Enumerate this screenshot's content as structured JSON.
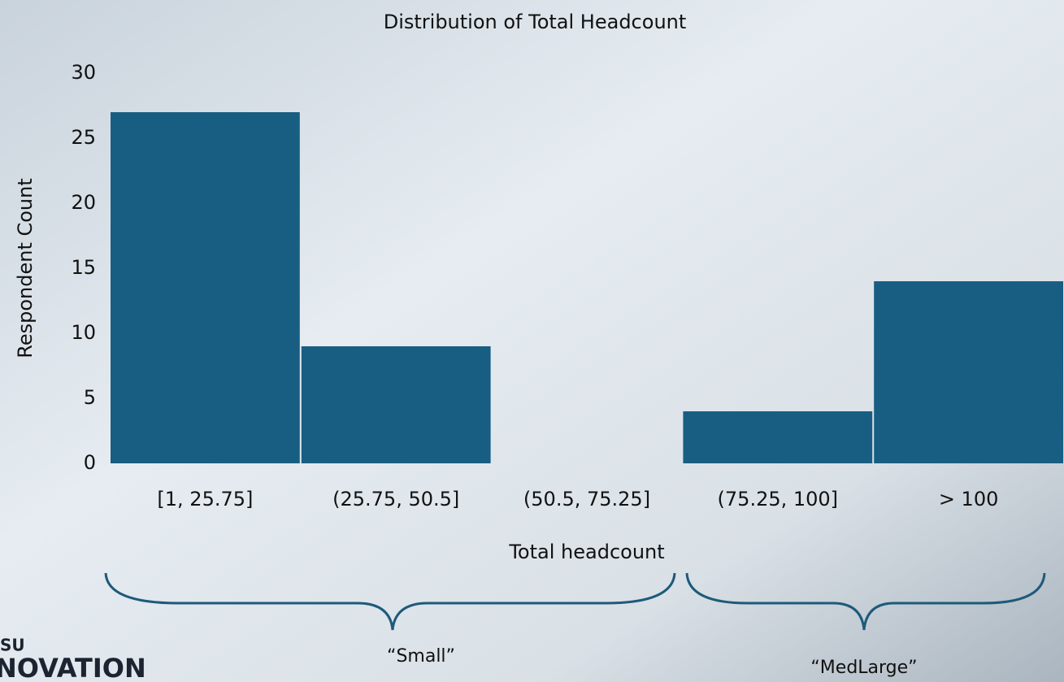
{
  "chart_data": {
    "type": "bar",
    "title": "Distribution of Total Headcount",
    "x_label": "Total headcount",
    "y_label": "Respondent Count",
    "categories": [
      "[1, 25.75]",
      "(25.75, 50.5]",
      "(50.5, 75.25]",
      "(75.25, 100]",
      "> 100"
    ],
    "values": [
      27,
      9,
      0,
      4,
      14
    ],
    "color": "#185e83",
    "ylim": [
      0,
      30
    ],
    "yticks": [
      0,
      5,
      10,
      15,
      20,
      25,
      30
    ],
    "grid": false,
    "annotations": [
      "“Small”",
      "“MedLarge”"
    ]
  },
  "logo_text": [
    "SU",
    "NOVATION"
  ]
}
